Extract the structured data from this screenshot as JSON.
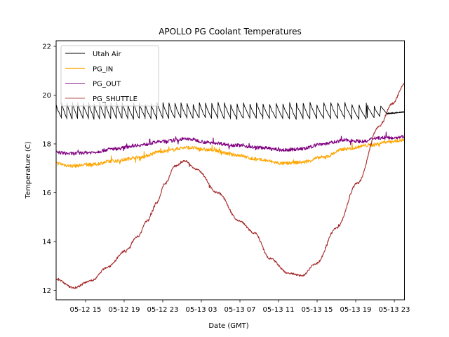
{
  "chart_data": {
    "type": "line",
    "title": "APOLLO PG Coolant Temperatures",
    "xlabel": "Date (GMT)",
    "ylabel": "Temperature (C)",
    "x_units": "hours since 05-12 00:00 GMT",
    "xlim": [
      11.95,
      48.05
    ],
    "ylim": [
      11.61,
      22.23
    ],
    "grid": false,
    "legend_position": "top-left",
    "x_ticks": [
      {
        "value": 15,
        "label": "05-12 15"
      },
      {
        "value": 19,
        "label": "05-12 19"
      },
      {
        "value": 23,
        "label": "05-12 23"
      },
      {
        "value": 27,
        "label": "05-13 03"
      },
      {
        "value": 31,
        "label": "05-13 07"
      },
      {
        "value": 35,
        "label": "05-13 11"
      },
      {
        "value": 39,
        "label": "05-13 15"
      },
      {
        "value": 43,
        "label": "05-13 19"
      },
      {
        "value": 47,
        "label": "05-13 23"
      }
    ],
    "y_ticks": [
      {
        "value": 12,
        "label": "12"
      },
      {
        "value": 14,
        "label": "14"
      },
      {
        "value": 16,
        "label": "16"
      },
      {
        "value": 18,
        "label": "18"
      },
      {
        "value": 20,
        "label": "20"
      },
      {
        "value": 22,
        "label": "22"
      }
    ],
    "series": [
      {
        "name": "Utah Air",
        "color": "#000000",
        "style": "sawtooth",
        "sawtooth": {
          "segments": [
            {
              "x_start": 11.95,
              "x_end": 44.2,
              "low": 19.05,
              "high": 19.65,
              "period_start": 0.55,
              "period_end": 0.75
            },
            {
              "x_start": 44.2,
              "x_end": 45.6,
              "low": 19.1,
              "high": 19.55,
              "period_start": 0.7,
              "period_end": 0.7
            }
          ],
          "tail": [
            [
              45.6,
              19.55
            ],
            [
              46.2,
              19.25
            ],
            [
              48.05,
              19.3
            ]
          ]
        }
      },
      {
        "name": "PG_IN",
        "color": "#ffa500",
        "x": [
          11.95,
          13.5,
          15.5,
          18.0,
          20.5,
          23.0,
          25.5,
          28.0,
          30.5,
          33.0,
          35.5,
          37.5,
          39.5,
          42.0,
          44.5,
          46.5,
          48.05
        ],
        "y": [
          17.2,
          17.1,
          17.15,
          17.3,
          17.45,
          17.7,
          17.85,
          17.75,
          17.55,
          17.35,
          17.2,
          17.25,
          17.45,
          17.8,
          17.95,
          18.1,
          18.15
        ]
      },
      {
        "name": "PG_OUT",
        "color": "#800080",
        "x": [
          11.95,
          13.5,
          15.5,
          18.0,
          20.5,
          23.0,
          25.5,
          28.0,
          30.5,
          33.0,
          35.5,
          37.5,
          39.5,
          42.0,
          44.0,
          45.0,
          46.5,
          48.05
        ],
        "y": [
          17.65,
          17.6,
          17.65,
          17.8,
          17.95,
          18.1,
          18.2,
          18.05,
          17.95,
          17.85,
          17.75,
          17.8,
          18.0,
          18.15,
          18.1,
          18.25,
          18.25,
          18.3
        ]
      },
      {
        "name": "PG_SHUTTLE",
        "color": "#a52a2a",
        "x": [
          11.95,
          13.76,
          15.6,
          17.3,
          19.1,
          20.4,
          21.4,
          22.4,
          23.2,
          24.3,
          25.3,
          26.5,
          28.7,
          30.9,
          32.5,
          34.1,
          36.0,
          37.4,
          38.9,
          41.0,
          43.2,
          45.4,
          46.8,
          48.05
        ],
        "y": [
          12.45,
          12.1,
          12.4,
          12.95,
          13.6,
          14.2,
          14.85,
          15.6,
          16.35,
          17.1,
          17.3,
          16.95,
          16.0,
          14.85,
          14.35,
          13.3,
          12.7,
          12.6,
          13.1,
          14.55,
          16.4,
          18.7,
          19.65,
          20.45
        ]
      }
    ]
  }
}
